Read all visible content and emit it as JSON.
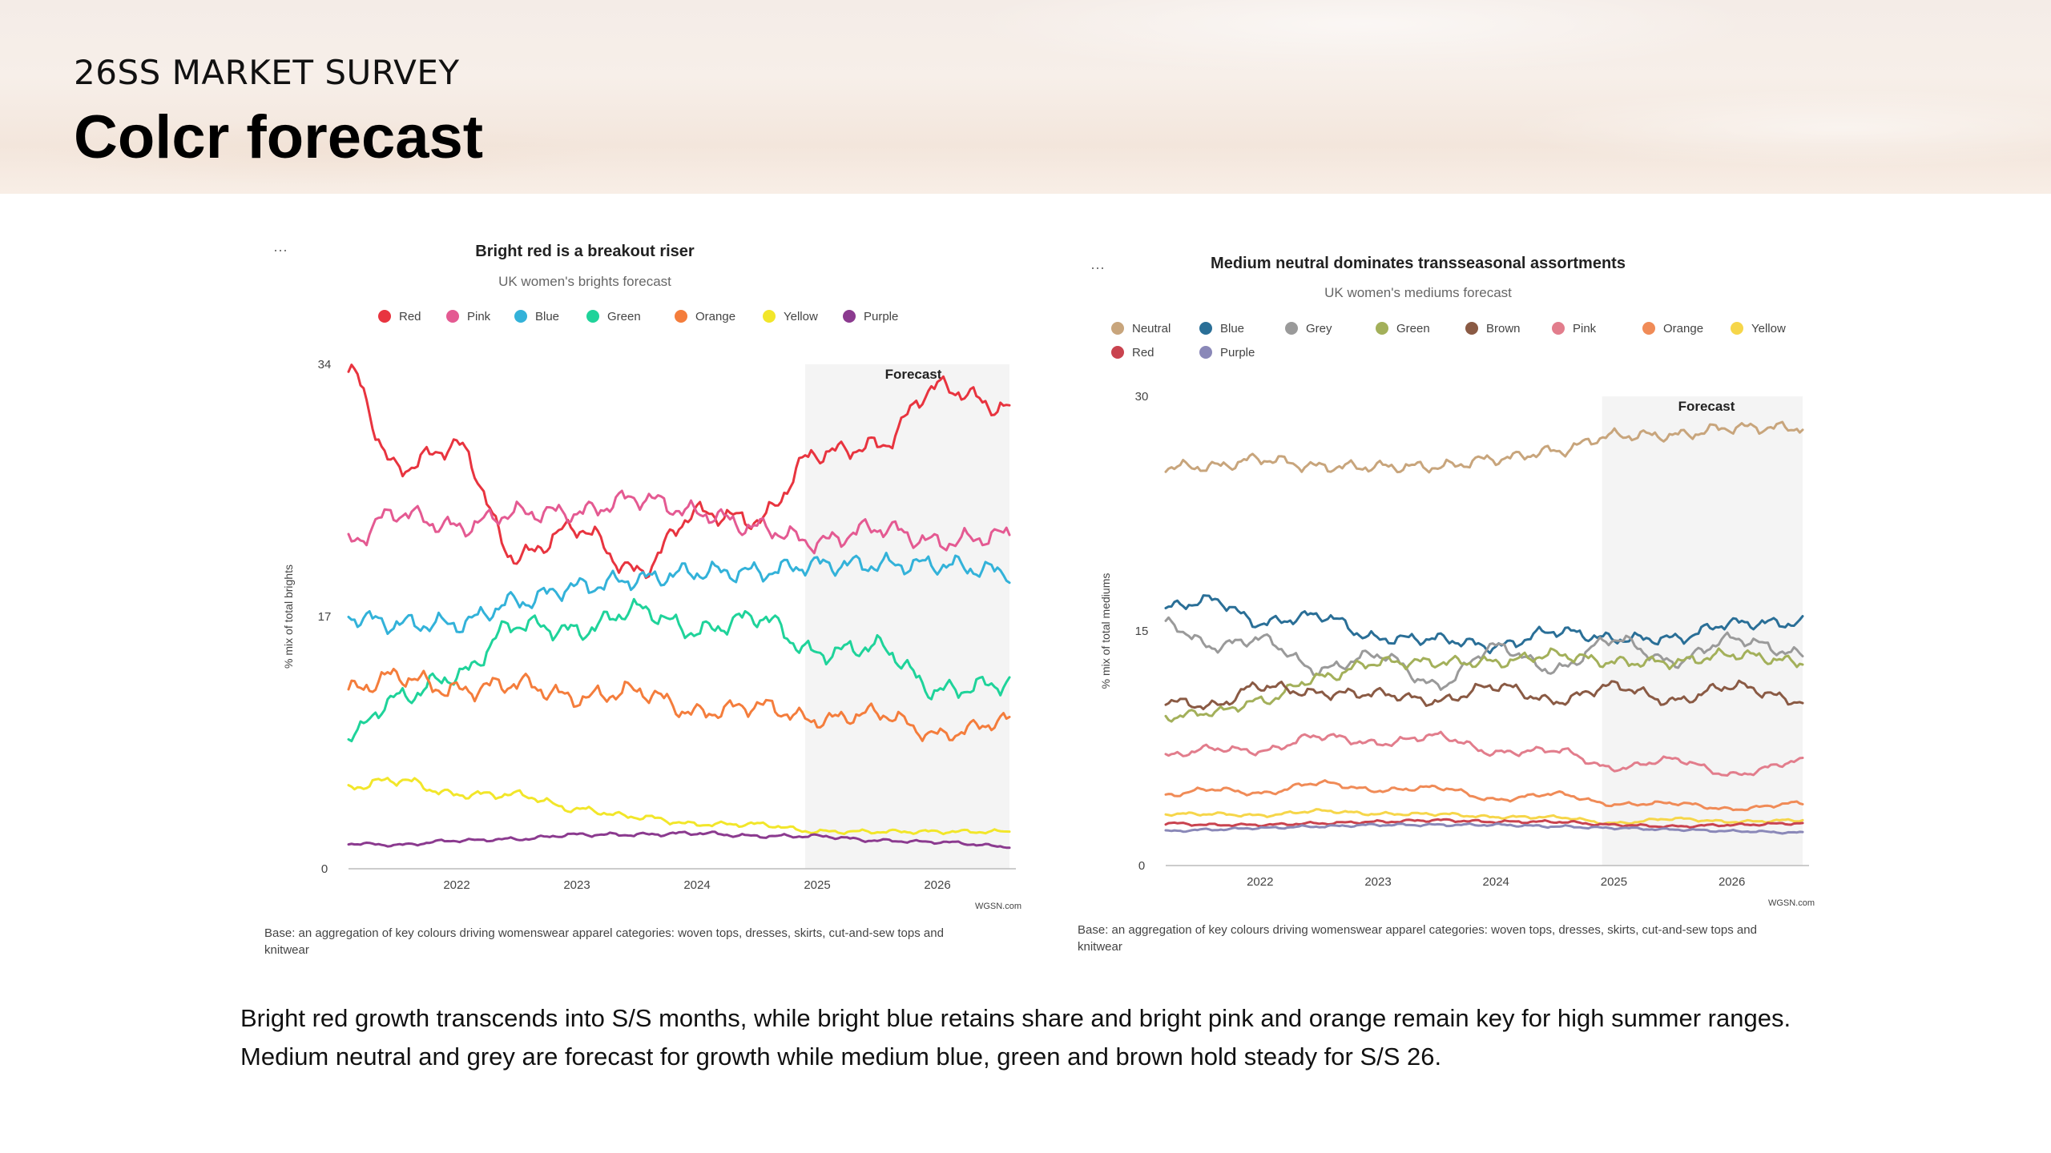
{
  "header": {
    "survey_label": "26SS MARKET SURVEY",
    "title": "Colcr forecast"
  },
  "caption": {
    "line1": "Bright red growth transcends into S/S months, while bright blue retains share and bright pink and orange remain key for high summer ranges.",
    "line2": "Medium neutral and grey are forecast for growth while medium blue, green and brown hold steady for S/S 26."
  },
  "chart_data": [
    {
      "type": "line",
      "title": "Bright red is a breakout riser",
      "subtitle": "UK women's brights forecast",
      "ylabel": "% mix of total brights",
      "xlabel": "",
      "ylim": [
        0,
        34
      ],
      "yticks": [
        "0",
        "17",
        "34"
      ],
      "xlim": [
        2021.1,
        2026.6
      ],
      "xticks": [
        2022,
        2023,
        2024,
        2025,
        2026
      ],
      "xtick_labels": [
        "2022",
        "2023",
        "2024",
        "2025",
        "2026"
      ],
      "forecast_start": 2024.9,
      "forecast_label": "Forecast",
      "menu_label": "···",
      "source": "WGSN.com",
      "base_line1": "Base: an aggregation of key colours driving womenswear apparel categories: woven tops, dresses, skirts, cut-and-sew tops and",
      "base_line2": "knitwear",
      "x": [
        2021.1,
        2021.5,
        2022.0,
        2022.5,
        2023.0,
        2023.5,
        2024.0,
        2024.5,
        2025.0,
        2025.5,
        2026.0,
        2026.6
      ],
      "series": [
        {
          "name": "Red",
          "color": "#e8343f",
          "values": [
            33.5,
            27,
            28.5,
            21,
            23,
            20,
            24,
            23.5,
            28,
            28.5,
            32.5,
            31
          ]
        },
        {
          "name": "Pink",
          "color": "#e45a92",
          "values": [
            22,
            24,
            23,
            24,
            24,
            25,
            24,
            23,
            22,
            23,
            22,
            22.5
          ]
        },
        {
          "name": "Blue",
          "color": "#33b2d9",
          "values": [
            17,
            16.5,
            16.5,
            18,
            19,
            19.5,
            20,
            20,
            20.5,
            20.5,
            20.5,
            20
          ]
        },
        {
          "name": "Green",
          "color": "#1fd39a",
          "values": [
            9,
            11.5,
            13,
            16.5,
            16,
            17.5,
            16,
            17,
            14.5,
            15,
            12,
            12.5
          ]
        },
        {
          "name": "Orange",
          "color": "#f47d3c",
          "values": [
            12,
            13,
            12,
            12.5,
            11.5,
            12,
            10.5,
            11,
            10,
            10.5,
            9,
            10
          ]
        },
        {
          "name": "Yellow",
          "color": "#f2e62a",
          "values": [
            5.5,
            6,
            5,
            5,
            4,
            3.5,
            3,
            3,
            2.5,
            2.5,
            2.5,
            2.5
          ]
        },
        {
          "name": "Purple",
          "color": "#8b3a8f",
          "values": [
            1.7,
            1.6,
            1.9,
            2.0,
            2.3,
            2.3,
            2.4,
            2.2,
            2.2,
            1.9,
            1.8,
            1.5
          ]
        }
      ]
    },
    {
      "type": "line",
      "title": "Medium neutral dominates transseasonal assortments",
      "subtitle": "UK women's mediums forecast",
      "ylabel": "% mix of total mediums",
      "xlabel": "",
      "ylim": [
        0,
        30
      ],
      "yticks": [
        "0",
        "15",
        "30"
      ],
      "xlim": [
        2021.2,
        2026.6
      ],
      "xticks": [
        2022,
        2023,
        2024,
        2025,
        2026
      ],
      "xtick_labels": [
        "2022",
        "2023",
        "2024",
        "2025",
        "2026"
      ],
      "forecast_start": 2024.9,
      "forecast_label": "Forecast",
      "menu_label": "···",
      "source": "WGSN.com",
      "base_line1": "Base: an aggregation of key colours driving womenswear apparel categories: woven tops, dresses, skirts, cut-and-sew tops and",
      "base_line2": "knitwear",
      "x": [
        2021.2,
        2021.6,
        2022.0,
        2022.5,
        2023.0,
        2023.5,
        2024.0,
        2024.5,
        2025.0,
        2025.5,
        2026.0,
        2026.6
      ],
      "series": [
        {
          "name": "Neutral",
          "color": "#c8a57c",
          "values": [
            25.5,
            25.5,
            26,
            25.5,
            25.5,
            25.5,
            26,
            26.5,
            27.5,
            27.5,
            28,
            28
          ]
        },
        {
          "name": "Blue",
          "color": "#2a6f97",
          "values": [
            16.5,
            17,
            15.5,
            16,
            14.5,
            14.5,
            14,
            15,
            14.5,
            14.5,
            15.5,
            15.5
          ]
        },
        {
          "name": "Grey",
          "color": "#9a9a9a",
          "values": [
            15.5,
            14,
            14.5,
            12.5,
            13.5,
            11.5,
            14,
            12.5,
            14.5,
            13,
            14.5,
            13.5
          ]
        },
        {
          "name": "Green",
          "color": "#a3b05a",
          "values": [
            9.5,
            9.8,
            10.5,
            12,
            13,
            13,
            13,
            13.5,
            13,
            13,
            13.5,
            13
          ]
        },
        {
          "name": "Brown",
          "color": "#8a5a44",
          "values": [
            10.5,
            10.2,
            11.5,
            11,
            11,
            10.5,
            11.5,
            10.5,
            11.5,
            10.5,
            11.5,
            10.5
          ]
        },
        {
          "name": "Pink",
          "color": "#e27d8c",
          "values": [
            7,
            7.5,
            7.3,
            8.3,
            7.8,
            8.3,
            7.2,
            7.4,
            6.2,
            6.8,
            5.8,
            6.7
          ]
        },
        {
          "name": "Orange",
          "color": "#f08b57",
          "values": [
            4.5,
            4.9,
            4.6,
            5.3,
            4.8,
            5.0,
            4.2,
            4.6,
            3.9,
            4.0,
            3.6,
            4.0
          ]
        },
        {
          "name": "Yellow",
          "color": "#f6d64a",
          "values": [
            3.3,
            3.3,
            3.2,
            3.5,
            3.3,
            3.3,
            3.1,
            3.1,
            2.7,
            3.0,
            2.8,
            2.9
          ]
        },
        {
          "name": "Red",
          "color": "#c9434f",
          "values": [
            2.7,
            2.6,
            2.6,
            2.7,
            2.8,
            2.9,
            2.8,
            2.8,
            2.6,
            2.5,
            2.6,
            2.7
          ]
        },
        {
          "name": "Purple",
          "color": "#8a88b8",
          "values": [
            2.2,
            2.3,
            2.4,
            2.5,
            2.6,
            2.6,
            2.6,
            2.5,
            2.4,
            2.3,
            2.2,
            2.1
          ]
        }
      ]
    }
  ]
}
